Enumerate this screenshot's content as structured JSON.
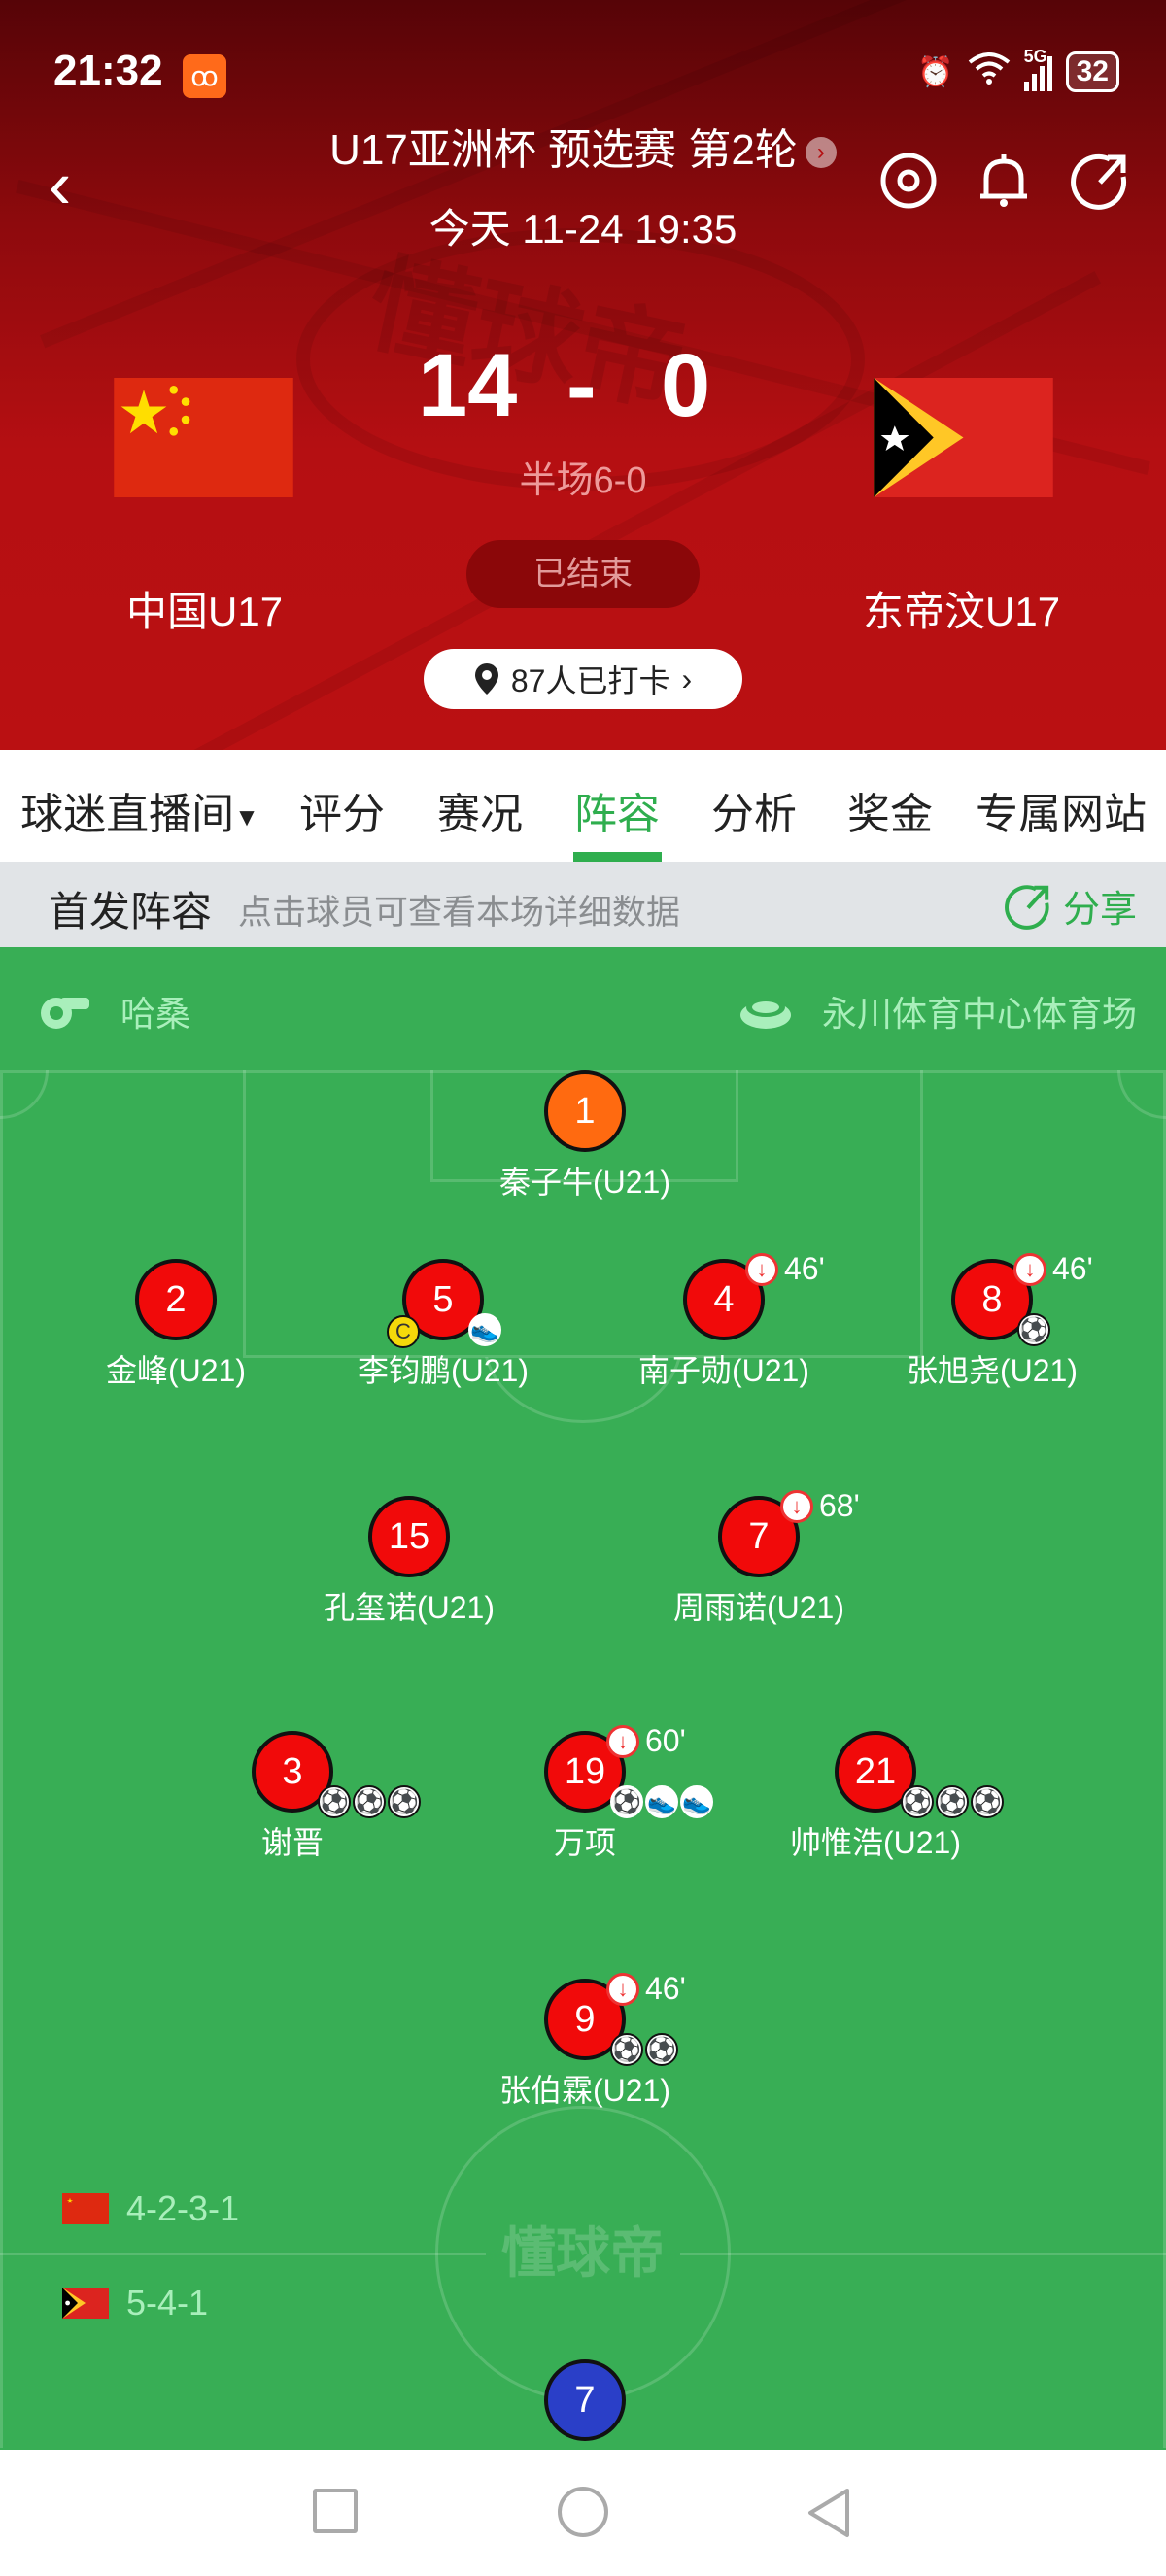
{
  "status_bar": {
    "time": "21:32",
    "app_icon": "kuaishou-icon",
    "battery": "32",
    "network": "5G"
  },
  "header": {
    "title": "U17亚洲杯 预选赛 第2轮",
    "date": "今天 11-24 19:35",
    "home": {
      "name": "中国U17",
      "score": "14"
    },
    "away": {
      "name": "东帝汶U17",
      "score": "0"
    },
    "separator": "-",
    "half_time": "半场6-0",
    "status": "已结束",
    "checkin": "87人已打卡",
    "watermark": "懂球帝"
  },
  "tabs": [
    {
      "label": "球迷直播间"
    },
    {
      "label": "评分"
    },
    {
      "label": "赛况"
    },
    {
      "label": "阵容",
      "active": true
    },
    {
      "label": "分析"
    },
    {
      "label": "奖金"
    },
    {
      "label": "专属网站"
    }
  ],
  "lineup": {
    "title": "首发阵容",
    "hint": "点击球员可查看本场详细数据",
    "share": "分享",
    "referee": "哈桑",
    "venue": "永川体育中心体育场",
    "home_formation": "4-2-3-1",
    "away_formation": "5-4-1",
    "watermark": "懂球帝",
    "colors": {
      "home": "#f10a0a",
      "goalkeeper": "#ff6a10",
      "away": "#2a3fc8",
      "pitch": "#38ae55"
    },
    "players": [
      {
        "number": "1",
        "name": "秦子牛(U21)",
        "gk": true
      },
      {
        "number": "2",
        "name": "金峰(U21)"
      },
      {
        "number": "5",
        "name": "李钧鹏(U21)",
        "captain": true,
        "assists": 1
      },
      {
        "number": "4",
        "name": "南子勋(U21)",
        "sub_out": "46'"
      },
      {
        "number": "8",
        "name": "张旭尧(U21)",
        "sub_out": "46'",
        "goals": 1
      },
      {
        "number": "15",
        "name": "孔玺诺(U21)"
      },
      {
        "number": "7",
        "name": "周雨诺(U21)",
        "sub_out": "68'"
      },
      {
        "number": "3",
        "name": "谢晋",
        "goals": 3
      },
      {
        "number": "19",
        "name": "万项",
        "sub_out": "60'",
        "penalty_goals": 1,
        "assists": 2
      },
      {
        "number": "21",
        "name": "帅惟浩(U21)",
        "goals": 3
      },
      {
        "number": "9",
        "name": "张伯霖(U21)",
        "sub_out": "46'",
        "goals": 2
      }
    ],
    "away_visible": [
      {
        "number": "7"
      }
    ]
  }
}
